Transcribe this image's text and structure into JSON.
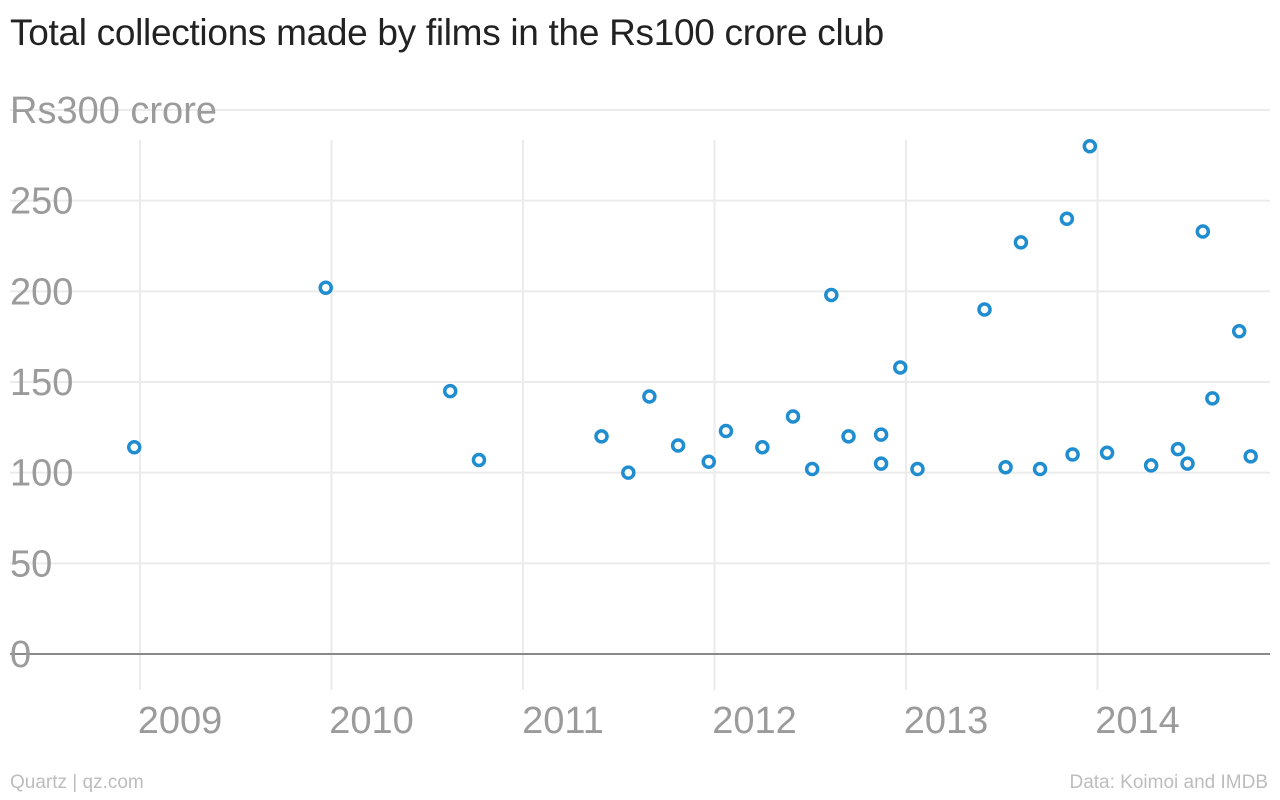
{
  "chart_data": {
    "type": "scatter",
    "title": "Total collections made by films in the Rs100 crore club",
    "ylabel_top": "Rs300 crore",
    "y_ticks": [
      {
        "value": 0,
        "label": "0"
      },
      {
        "value": 50,
        "label": "50"
      },
      {
        "value": 100,
        "label": "100"
      },
      {
        "value": 150,
        "label": "150"
      },
      {
        "value": 200,
        "label": "200"
      },
      {
        "value": 250,
        "label": "250"
      }
    ],
    "x_ticks": [
      "2009",
      "2010",
      "2011",
      "2012",
      "2013",
      "2014"
    ],
    "xlim": [
      2008.5,
      2014.93
    ],
    "ylim": [
      0,
      300
    ],
    "grid": true,
    "marker_color": "#1f8dd0",
    "points": [
      {
        "x": 2008.97,
        "y": 114
      },
      {
        "x": 2009.97,
        "y": 202
      },
      {
        "x": 2010.62,
        "y": 145
      },
      {
        "x": 2010.77,
        "y": 107
      },
      {
        "x": 2011.41,
        "y": 120
      },
      {
        "x": 2011.55,
        "y": 100
      },
      {
        "x": 2011.66,
        "y": 142
      },
      {
        "x": 2011.81,
        "y": 115
      },
      {
        "x": 2011.97,
        "y": 106
      },
      {
        "x": 2012.06,
        "y": 123
      },
      {
        "x": 2012.25,
        "y": 114
      },
      {
        "x": 2012.41,
        "y": 131
      },
      {
        "x": 2012.51,
        "y": 102
      },
      {
        "x": 2012.61,
        "y": 198
      },
      {
        "x": 2012.7,
        "y": 120
      },
      {
        "x": 2012.87,
        "y": 121
      },
      {
        "x": 2012.87,
        "y": 105
      },
      {
        "x": 2012.97,
        "y": 158
      },
      {
        "x": 2013.06,
        "y": 102
      },
      {
        "x": 2013.41,
        "y": 190
      },
      {
        "x": 2013.52,
        "y": 103
      },
      {
        "x": 2013.6,
        "y": 227
      },
      {
        "x": 2013.7,
        "y": 102
      },
      {
        "x": 2013.84,
        "y": 240
      },
      {
        "x": 2013.87,
        "y": 110
      },
      {
        "x": 2013.96,
        "y": 280
      },
      {
        "x": 2014.05,
        "y": 111
      },
      {
        "x": 2014.28,
        "y": 104
      },
      {
        "x": 2014.42,
        "y": 113
      },
      {
        "x": 2014.47,
        "y": 105
      },
      {
        "x": 2014.55,
        "y": 233
      },
      {
        "x": 2014.6,
        "y": 141
      },
      {
        "x": 2014.74,
        "y": 178
      },
      {
        "x": 2014.8,
        "y": 109
      }
    ]
  },
  "footer": {
    "source_left": "Quartz | qz.com",
    "source_right": "Data: Koimoi and IMDB"
  }
}
